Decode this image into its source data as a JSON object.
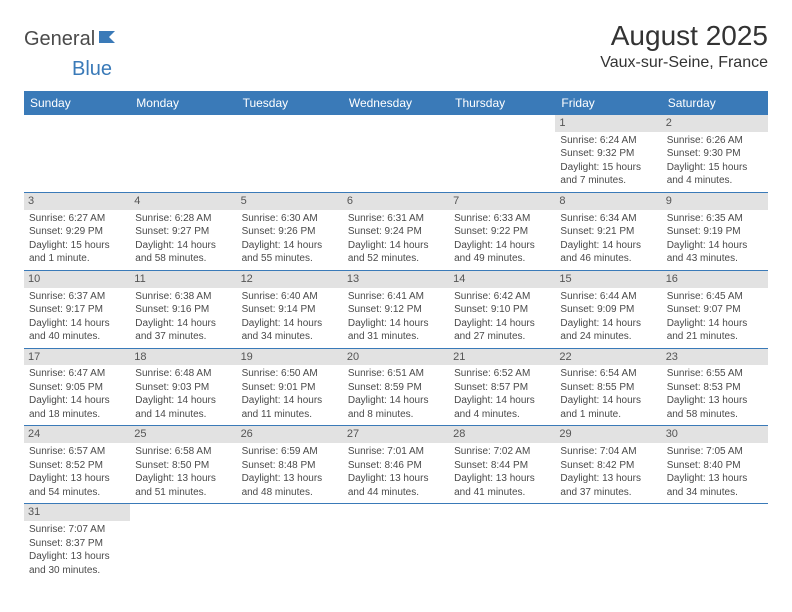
{
  "brand": {
    "part1": "General",
    "part2": "Blue"
  },
  "title": "August 2025",
  "location": "Vaux-sur-Seine, France",
  "colors": {
    "header_bg": "#3a7ab8",
    "header_text": "#ffffff",
    "daynum_bg": "#e2e2e2",
    "border": "#3a7ab8",
    "text": "#4a4a4a"
  },
  "weekdays": [
    "Sunday",
    "Monday",
    "Tuesday",
    "Wednesday",
    "Thursday",
    "Friday",
    "Saturday"
  ],
  "weeks": [
    [
      null,
      null,
      null,
      null,
      null,
      {
        "n": "1",
        "sunrise": "6:24 AM",
        "sunset": "9:32 PM",
        "daylight": "15 hours and 7 minutes."
      },
      {
        "n": "2",
        "sunrise": "6:26 AM",
        "sunset": "9:30 PM",
        "daylight": "15 hours and 4 minutes."
      }
    ],
    [
      {
        "n": "3",
        "sunrise": "6:27 AM",
        "sunset": "9:29 PM",
        "daylight": "15 hours and 1 minute."
      },
      {
        "n": "4",
        "sunrise": "6:28 AM",
        "sunset": "9:27 PM",
        "daylight": "14 hours and 58 minutes."
      },
      {
        "n": "5",
        "sunrise": "6:30 AM",
        "sunset": "9:26 PM",
        "daylight": "14 hours and 55 minutes."
      },
      {
        "n": "6",
        "sunrise": "6:31 AM",
        "sunset": "9:24 PM",
        "daylight": "14 hours and 52 minutes."
      },
      {
        "n": "7",
        "sunrise": "6:33 AM",
        "sunset": "9:22 PM",
        "daylight": "14 hours and 49 minutes."
      },
      {
        "n": "8",
        "sunrise": "6:34 AM",
        "sunset": "9:21 PM",
        "daylight": "14 hours and 46 minutes."
      },
      {
        "n": "9",
        "sunrise": "6:35 AM",
        "sunset": "9:19 PM",
        "daylight": "14 hours and 43 minutes."
      }
    ],
    [
      {
        "n": "10",
        "sunrise": "6:37 AM",
        "sunset": "9:17 PM",
        "daylight": "14 hours and 40 minutes."
      },
      {
        "n": "11",
        "sunrise": "6:38 AM",
        "sunset": "9:16 PM",
        "daylight": "14 hours and 37 minutes."
      },
      {
        "n": "12",
        "sunrise": "6:40 AM",
        "sunset": "9:14 PM",
        "daylight": "14 hours and 34 minutes."
      },
      {
        "n": "13",
        "sunrise": "6:41 AM",
        "sunset": "9:12 PM",
        "daylight": "14 hours and 31 minutes."
      },
      {
        "n": "14",
        "sunrise": "6:42 AM",
        "sunset": "9:10 PM",
        "daylight": "14 hours and 27 minutes."
      },
      {
        "n": "15",
        "sunrise": "6:44 AM",
        "sunset": "9:09 PM",
        "daylight": "14 hours and 24 minutes."
      },
      {
        "n": "16",
        "sunrise": "6:45 AM",
        "sunset": "9:07 PM",
        "daylight": "14 hours and 21 minutes."
      }
    ],
    [
      {
        "n": "17",
        "sunrise": "6:47 AM",
        "sunset": "9:05 PM",
        "daylight": "14 hours and 18 minutes."
      },
      {
        "n": "18",
        "sunrise": "6:48 AM",
        "sunset": "9:03 PM",
        "daylight": "14 hours and 14 minutes."
      },
      {
        "n": "19",
        "sunrise": "6:50 AM",
        "sunset": "9:01 PM",
        "daylight": "14 hours and 11 minutes."
      },
      {
        "n": "20",
        "sunrise": "6:51 AM",
        "sunset": "8:59 PM",
        "daylight": "14 hours and 8 minutes."
      },
      {
        "n": "21",
        "sunrise": "6:52 AM",
        "sunset": "8:57 PM",
        "daylight": "14 hours and 4 minutes."
      },
      {
        "n": "22",
        "sunrise": "6:54 AM",
        "sunset": "8:55 PM",
        "daylight": "14 hours and 1 minute."
      },
      {
        "n": "23",
        "sunrise": "6:55 AM",
        "sunset": "8:53 PM",
        "daylight": "13 hours and 58 minutes."
      }
    ],
    [
      {
        "n": "24",
        "sunrise": "6:57 AM",
        "sunset": "8:52 PM",
        "daylight": "13 hours and 54 minutes."
      },
      {
        "n": "25",
        "sunrise": "6:58 AM",
        "sunset": "8:50 PM",
        "daylight": "13 hours and 51 minutes."
      },
      {
        "n": "26",
        "sunrise": "6:59 AM",
        "sunset": "8:48 PM",
        "daylight": "13 hours and 48 minutes."
      },
      {
        "n": "27",
        "sunrise": "7:01 AM",
        "sunset": "8:46 PM",
        "daylight": "13 hours and 44 minutes."
      },
      {
        "n": "28",
        "sunrise": "7:02 AM",
        "sunset": "8:44 PM",
        "daylight": "13 hours and 41 minutes."
      },
      {
        "n": "29",
        "sunrise": "7:04 AM",
        "sunset": "8:42 PM",
        "daylight": "13 hours and 37 minutes."
      },
      {
        "n": "30",
        "sunrise": "7:05 AM",
        "sunset": "8:40 PM",
        "daylight": "13 hours and 34 minutes."
      }
    ],
    [
      {
        "n": "31",
        "sunrise": "7:07 AM",
        "sunset": "8:37 PM",
        "daylight": "13 hours and 30 minutes."
      },
      null,
      null,
      null,
      null,
      null,
      null
    ]
  ],
  "labels": {
    "sunrise": "Sunrise: ",
    "sunset": "Sunset: ",
    "daylight": "Daylight: "
  }
}
